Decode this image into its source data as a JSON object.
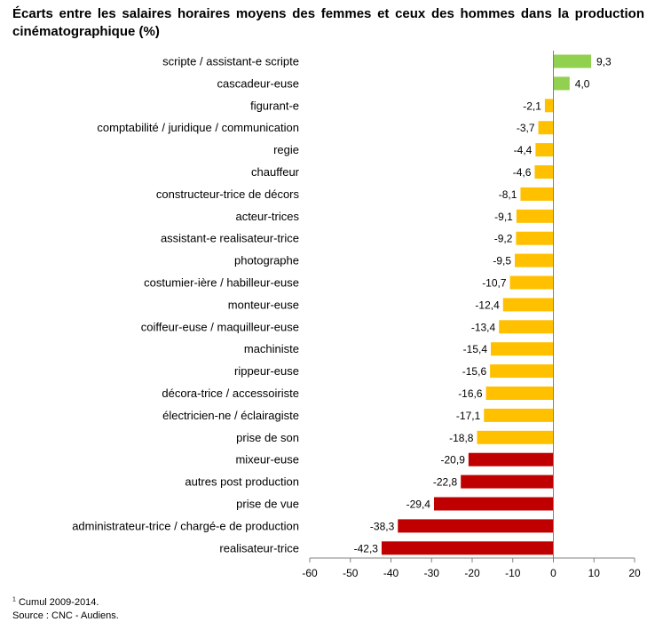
{
  "title": "Écarts entre les salaires horaires moyens des femmes et ceux des hommes dans la production cinématographique (%)",
  "footnote": {
    "marker": "1",
    "note": "Cumul 2009-2014.",
    "source": "Source : CNC - Audiens."
  },
  "colors": {
    "positive": "#92d050",
    "moderate": "#ffc000",
    "severe": "#c00000",
    "axis": "#808080"
  },
  "chart_data": {
    "type": "bar",
    "orientation": "horizontal",
    "title": "Écarts entre les salaires horaires moyens des femmes et ceux des hommes dans la production cinématographique (%)",
    "xlim": [
      -60,
      20
    ],
    "xticks": [
      -60,
      -50,
      -40,
      -30,
      -20,
      -10,
      0,
      10,
      20
    ],
    "grid": false,
    "categories": [
      "scripte / assistant-e scripte",
      "cascadeur-euse",
      "figurant-e",
      "comptabilité / juridique / communication",
      "regie",
      "chauffeur",
      "constructeur-trice de décors",
      "acteur-trices",
      "assistant-e realisateur-trice",
      "photographe",
      "costumier-ière / habilleur-euse",
      "monteur-euse",
      "coiffeur-euse / maquilleur-euse",
      "machiniste",
      "rippeur-euse",
      "décora-trice / accessoiriste",
      "électricien-ne / éclairagiste",
      "prise de son",
      "mixeur-euse",
      "autres post production",
      "prise de vue",
      "administrateur-trice / chargé-e de production",
      "realisateur-trice"
    ],
    "values": [
      9.3,
      4.0,
      -2.1,
      -3.7,
      -4.4,
      -4.6,
      -8.1,
      -9.1,
      -9.2,
      -9.5,
      -10.7,
      -12.4,
      -13.4,
      -15.4,
      -15.6,
      -16.6,
      -17.1,
      -18.8,
      -20.9,
      -22.8,
      -29.4,
      -38.3,
      -42.3
    ],
    "value_labels": [
      "9,3",
      "4,0",
      "-2,1",
      "-3,7",
      "-4,4",
      "-4,6",
      "-8,1",
      "-9,1",
      "-9,2",
      "-9,5",
      "-10,7",
      "-12,4",
      "-13,4",
      "-15,4",
      "-15,6",
      "-16,6",
      "-17,1",
      "-18,8",
      "-20,9",
      "-22,8",
      "-29,4",
      "-38,3",
      "-42,3"
    ],
    "bar_colors": [
      "#92d050",
      "#92d050",
      "#ffc000",
      "#ffc000",
      "#ffc000",
      "#ffc000",
      "#ffc000",
      "#ffc000",
      "#ffc000",
      "#ffc000",
      "#ffc000",
      "#ffc000",
      "#ffc000",
      "#ffc000",
      "#ffc000",
      "#ffc000",
      "#ffc000",
      "#ffc000",
      "#c00000",
      "#c00000",
      "#c00000",
      "#c00000",
      "#c00000"
    ]
  }
}
